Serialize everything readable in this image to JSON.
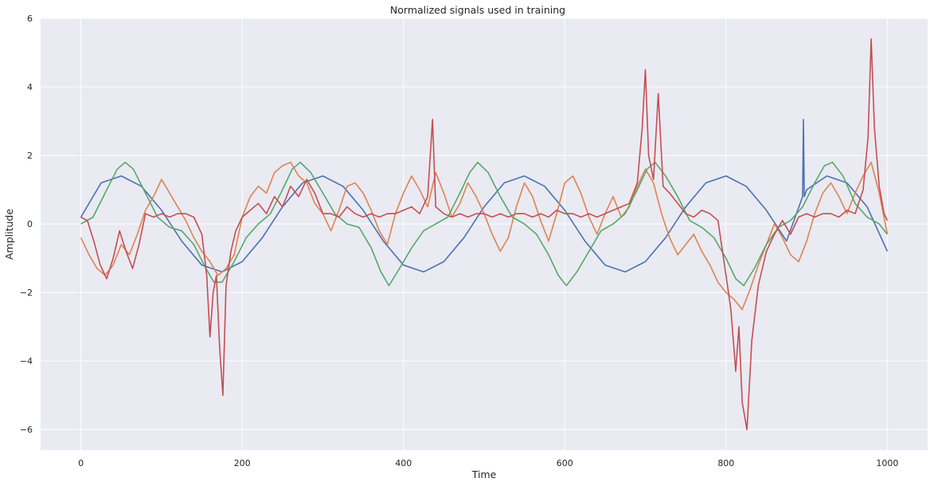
{
  "chart_data": {
    "type": "line",
    "title": "Normalized signals used in training",
    "xlabel": "Time",
    "ylabel": "Amplitude",
    "xlim": [
      -50,
      1050
    ],
    "ylim": [
      -6.6,
      6.0
    ],
    "xticks": [
      0,
      200,
      400,
      600,
      800,
      1000
    ],
    "yticks": [
      -6,
      -4,
      -2,
      0,
      2,
      4,
      6
    ],
    "xtick_labels": [
      "0",
      "200",
      "400",
      "600",
      "800",
      "1000"
    ],
    "ytick_labels": [
      "−6",
      "−4",
      "−2",
      "0",
      "2",
      "4",
      "6"
    ],
    "grid": true,
    "background": "#eaeaf2",
    "series": [
      {
        "color": "#4c72b0",
        "x": [
          0,
          25,
          50,
          75,
          100,
          125,
          150,
          175,
          200,
          225,
          250,
          275,
          300,
          325,
          350,
          375,
          400,
          425,
          450,
          475,
          500,
          525,
          550,
          575,
          600,
          625,
          650,
          675,
          700,
          725,
          750,
          775,
          800,
          825,
          850,
          875,
          895,
          896,
          897,
          900,
          925,
          950,
          975,
          1000
        ],
        "values": [
          0.2,
          1.2,
          1.4,
          1.1,
          0.4,
          -0.5,
          -1.2,
          -1.4,
          -1.1,
          -0.4,
          0.5,
          1.2,
          1.4,
          1.1,
          0.4,
          -0.5,
          -1.2,
          -1.4,
          -1.1,
          -0.4,
          0.5,
          1.2,
          1.4,
          1.1,
          0.4,
          -0.5,
          -1.2,
          -1.4,
          -1.1,
          -0.4,
          0.5,
          1.2,
          1.4,
          1.1,
          0.4,
          -0.5,
          0.8,
          3.05,
          0.8,
          1.0,
          1.4,
          1.2,
          0.5,
          -0.8
        ]
      },
      {
        "color": "#dd8452",
        "x": [
          0,
          10,
          20,
          30,
          40,
          50,
          60,
          70,
          80,
          90,
          100,
          110,
          120,
          130,
          140,
          150,
          160,
          170,
          180,
          190,
          200,
          210,
          220,
          230,
          240,
          250,
          260,
          270,
          280,
          290,
          300,
          310,
          320,
          330,
          340,
          350,
          360,
          370,
          380,
          390,
          400,
          410,
          420,
          430,
          440,
          450,
          460,
          470,
          480,
          490,
          500,
          510,
          520,
          530,
          540,
          550,
          560,
          570,
          580,
          590,
          600,
          610,
          620,
          630,
          640,
          650,
          660,
          670,
          680,
          690,
          700,
          710,
          720,
          730,
          740,
          750,
          760,
          770,
          780,
          790,
          800,
          810,
          820,
          830,
          840,
          850,
          860,
          870,
          880,
          890,
          900,
          910,
          920,
          930,
          940,
          950,
          960,
          970,
          980,
          990,
          1000
        ],
        "values": [
          -0.4,
          -0.9,
          -1.3,
          -1.5,
          -1.2,
          -0.6,
          -0.9,
          -0.3,
          0.4,
          0.8,
          1.3,
          0.9,
          0.5,
          0.1,
          -0.4,
          -0.8,
          -1.1,
          -1.5,
          -1.3,
          -0.9,
          0.2,
          0.8,
          1.1,
          0.9,
          1.5,
          1.7,
          1.8,
          1.4,
          1.2,
          0.6,
          0.3,
          -0.2,
          0.4,
          1.1,
          1.2,
          0.9,
          0.4,
          -0.2,
          -0.6,
          0.3,
          0.9,
          1.4,
          1.0,
          0.5,
          1.5,
          0.9,
          0.2,
          0.6,
          1.2,
          0.8,
          0.3,
          -0.3,
          -0.8,
          -0.4,
          0.5,
          1.2,
          0.8,
          0.1,
          -0.5,
          0.3,
          1.2,
          1.4,
          0.9,
          0.2,
          -0.3,
          0.3,
          0.8,
          0.2,
          0.5,
          1.1,
          1.6,
          1.2,
          0.3,
          -0.4,
          -0.9,
          -0.6,
          -0.3,
          -0.8,
          -1.2,
          -1.7,
          -2.0,
          -2.2,
          -2.5,
          -1.9,
          -1.2,
          -0.6,
          0.0,
          -0.4,
          -0.9,
          -1.1,
          -0.5,
          0.3,
          0.9,
          1.2,
          0.8,
          0.3,
          0.9,
          1.4,
          1.8,
          0.9,
          -0.3
        ]
      },
      {
        "color": "#55a868",
        "x": [
          0,
          15,
          30,
          45,
          55,
          65,
          80,
          95,
          110,
          125,
          140,
          155,
          165,
          175,
          190,
          205,
          220,
          235,
          250,
          262,
          272,
          285,
          300,
          315,
          330,
          345,
          360,
          372,
          382,
          395,
          410,
          425,
          440,
          455,
          470,
          482,
          492,
          505,
          520,
          535,
          550,
          565,
          580,
          592,
          602,
          615,
          630,
          645,
          660,
          675,
          690,
          702,
          712,
          725,
          740,
          755,
          770,
          785,
          800,
          812,
          822,
          835,
          850,
          865,
          880,
          895,
          910,
          922,
          932,
          945,
          960,
          975,
          990,
          1000
        ],
        "values": [
          0.0,
          0.2,
          0.9,
          1.6,
          1.8,
          1.6,
          0.9,
          0.2,
          -0.1,
          -0.2,
          -0.6,
          -1.3,
          -1.7,
          -1.7,
          -1.1,
          -0.4,
          0.0,
          0.3,
          1.0,
          1.6,
          1.8,
          1.5,
          0.9,
          0.3,
          0.0,
          -0.1,
          -0.7,
          -1.4,
          -1.8,
          -1.3,
          -0.7,
          -0.2,
          0.0,
          0.2,
          0.9,
          1.5,
          1.8,
          1.5,
          0.8,
          0.2,
          0.0,
          -0.3,
          -0.9,
          -1.5,
          -1.8,
          -1.4,
          -0.8,
          -0.2,
          0.0,
          0.3,
          1.0,
          1.6,
          1.8,
          1.4,
          0.8,
          0.1,
          -0.1,
          -0.4,
          -1.0,
          -1.6,
          -1.8,
          -1.3,
          -0.6,
          -0.1,
          0.1,
          0.5,
          1.2,
          1.7,
          1.8,
          1.4,
          0.6,
          0.2,
          0.0,
          -0.3
        ]
      },
      {
        "color": "#c44e52",
        "x": [
          0,
          8,
          16,
          24,
          32,
          40,
          48,
          56,
          64,
          72,
          80,
          90,
          100,
          110,
          120,
          130,
          140,
          150,
          156,
          160,
          164,
          168,
          172,
          176,
          180,
          186,
          192,
          200,
          210,
          220,
          230,
          240,
          250,
          260,
          270,
          280,
          290,
          300,
          310,
          320,
          330,
          340,
          350,
          360,
          370,
          380,
          390,
          400,
          410,
          420,
          430,
          436,
          440,
          450,
          460,
          470,
          480,
          490,
          500,
          510,
          520,
          530,
          540,
          550,
          560,
          570,
          580,
          590,
          600,
          610,
          620,
          630,
          640,
          650,
          660,
          670,
          680,
          690,
          696,
          700,
          704,
          710,
          716,
          722,
          730,
          740,
          750,
          760,
          770,
          780,
          790,
          800,
          806,
          812,
          816,
          820,
          826,
          832,
          840,
          850,
          860,
          870,
          880,
          890,
          900,
          910,
          920,
          930,
          940,
          950,
          960,
          970,
          976,
          980,
          984,
          990,
          996,
          1000
        ],
        "values": [
          0.2,
          0.1,
          -0.5,
          -1.2,
          -1.6,
          -1.0,
          -0.2,
          -0.8,
          -1.3,
          -0.6,
          0.3,
          0.2,
          0.3,
          0.2,
          0.3,
          0.3,
          0.2,
          -0.3,
          -1.5,
          -3.3,
          -2.0,
          -1.5,
          -3.6,
          -5.0,
          -1.8,
          -0.8,
          -0.2,
          0.2,
          0.4,
          0.6,
          0.3,
          0.8,
          0.5,
          1.1,
          0.8,
          1.3,
          0.9,
          0.3,
          0.3,
          0.2,
          0.5,
          0.3,
          0.2,
          0.3,
          0.2,
          0.3,
          0.3,
          0.4,
          0.5,
          0.3,
          0.8,
          3.05,
          0.5,
          0.3,
          0.2,
          0.3,
          0.2,
          0.3,
          0.3,
          0.2,
          0.3,
          0.2,
          0.3,
          0.3,
          0.2,
          0.3,
          0.2,
          0.4,
          0.3,
          0.3,
          0.2,
          0.3,
          0.2,
          0.3,
          0.4,
          0.5,
          0.6,
          1.2,
          2.8,
          4.5,
          2.0,
          1.3,
          3.8,
          1.1,
          0.9,
          0.6,
          0.3,
          0.2,
          0.4,
          0.3,
          0.1,
          -1.5,
          -2.5,
          -4.3,
          -3.0,
          -5.2,
          -6.0,
          -3.4,
          -1.8,
          -0.8,
          -0.3,
          0.1,
          -0.3,
          0.2,
          0.3,
          0.2,
          0.3,
          0.3,
          0.2,
          0.4,
          0.3,
          1.0,
          2.5,
          5.4,
          2.8,
          1.1,
          0.3,
          0.1
        ]
      }
    ]
  }
}
